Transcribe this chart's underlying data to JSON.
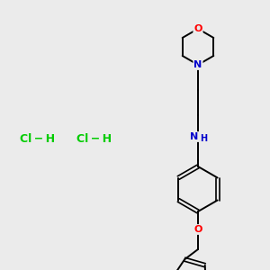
{
  "background_color": "#ebebeb",
  "atom_colors": {
    "C": "#000000",
    "N": "#0000cc",
    "O": "#ff0000",
    "S": "#cccc00",
    "H": "#000000",
    "Cl": "#00cc00"
  },
  "bond_color": "#000000",
  "hcl_color": "#00cc00",
  "figsize": [
    3.0,
    3.0
  ],
  "dpi": 100
}
